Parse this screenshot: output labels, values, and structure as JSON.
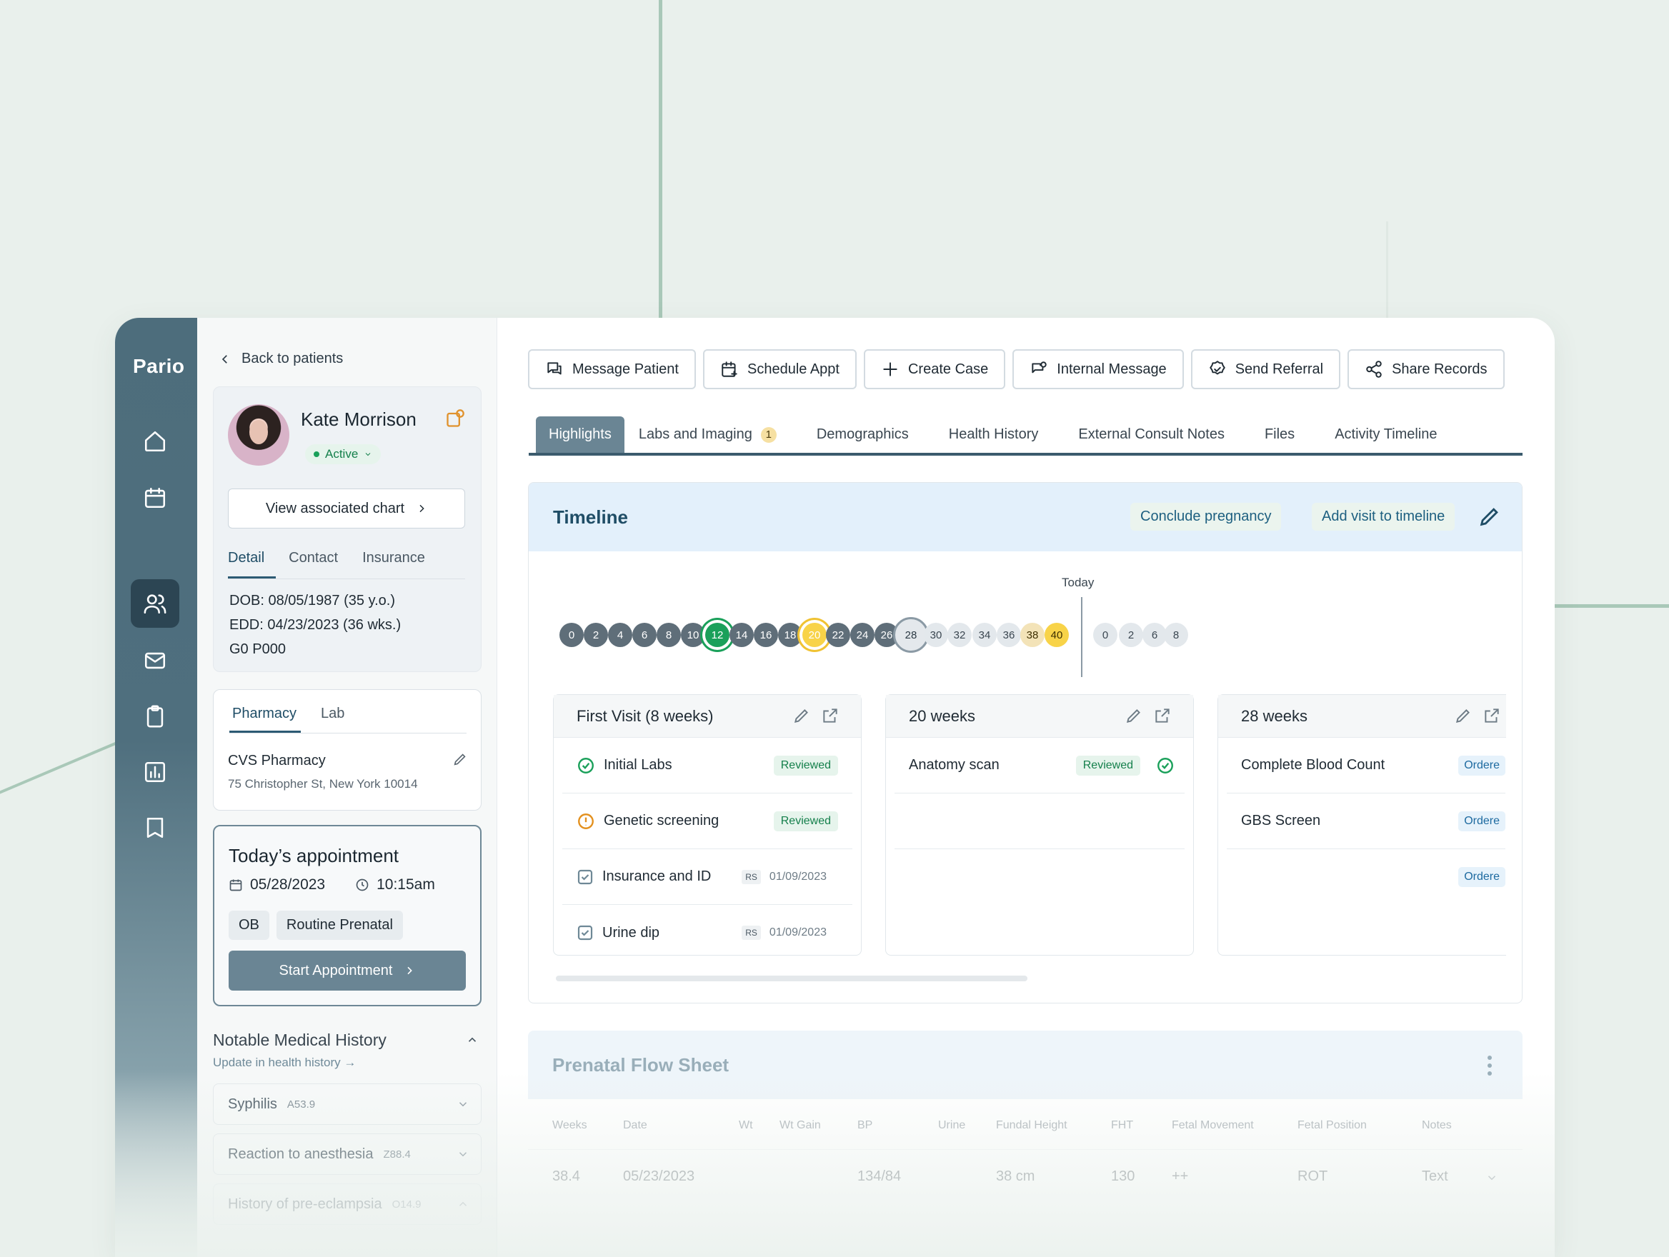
{
  "app": {
    "brand": "Pario"
  },
  "nav": {
    "items": [
      "home-icon",
      "calendar-icon",
      "patients-icon",
      "mail-icon",
      "clipboard-icon",
      "chart-icon",
      "book-icon"
    ],
    "active_index": 2
  },
  "patient_panel": {
    "back_label": "Back to patients",
    "name": "Kate Morrison",
    "status": "Active",
    "view_chart_label": "View associated chart",
    "tabs": [
      "Detail",
      "Contact",
      "Insurance"
    ],
    "details": [
      "DOB: 08/05/1987 (35 y.o.)",
      "EDD: 04/23/2023 (36 wks.)",
      "G0 P000"
    ],
    "pharmacy_tabs": [
      "Pharmacy",
      "Lab"
    ],
    "pharmacy_name": "CVS Pharmacy",
    "pharmacy_address": "75 Christopher St, New York 10014",
    "appointment": {
      "title": "Today’s appointment",
      "date": "05/28/2023",
      "time": "10:15am",
      "chips": [
        "OB",
        "Routine Prenatal"
      ],
      "start_label": "Start Appointment"
    },
    "notable": {
      "title": "Notable Medical History",
      "subtitle": "Update in health history →",
      "items": [
        {
          "label": "Syphilis",
          "code": "A53.9"
        },
        {
          "label": "Reaction to anesthesia",
          "code": "Z88.4"
        },
        {
          "label": "History of pre-eclampsia",
          "code": "O14.9"
        }
      ]
    }
  },
  "actions": [
    "Message Patient",
    "Schedule Appt",
    "Create Case",
    "Internal Message",
    "Send Referral",
    "Share Records"
  ],
  "tabs": [
    {
      "label": "Highlights",
      "active": true
    },
    {
      "label": "Labs and Imaging",
      "badge": "1"
    },
    {
      "label": "Demographics"
    },
    {
      "label": "Health History"
    },
    {
      "label": "External Consult Notes"
    },
    {
      "label": "Files"
    },
    {
      "label": "Activity Timeline"
    }
  ],
  "timeline": {
    "title": "Timeline",
    "conclude_label": "Conclude pregnancy",
    "add_visit_label": "Add visit to timeline",
    "today_label": "Today",
    "weeks": [
      {
        "n": "0",
        "s": "dark"
      },
      {
        "n": "2",
        "s": "dark"
      },
      {
        "n": "4",
        "s": "dark"
      },
      {
        "n": "6",
        "s": "dark"
      },
      {
        "n": "8",
        "s": "dark"
      },
      {
        "n": "10",
        "s": "dark"
      },
      {
        "n": "12",
        "s": "green-ring"
      },
      {
        "n": "14",
        "s": "dark"
      },
      {
        "n": "16",
        "s": "dark"
      },
      {
        "n": "18",
        "s": "dark"
      },
      {
        "n": "20",
        "s": "yellow-ring"
      },
      {
        "n": "22",
        "s": "dark"
      },
      {
        "n": "24",
        "s": "dark"
      },
      {
        "n": "26",
        "s": "dark"
      },
      {
        "n": "28",
        "s": "today"
      },
      {
        "n": "30",
        "s": "light"
      },
      {
        "n": "32",
        "s": "light"
      },
      {
        "n": "34",
        "s": "light"
      },
      {
        "n": "36",
        "s": "light"
      },
      {
        "n": "38",
        "s": "cream"
      },
      {
        "n": "40",
        "s": "yellow"
      },
      {
        "n": "0",
        "s": "light"
      },
      {
        "n": "2",
        "s": "light"
      },
      {
        "n": "6",
        "s": "light"
      },
      {
        "n": "8",
        "s": "light"
      }
    ],
    "cards": [
      {
        "title": "First Visit (8 weeks)",
        "rows": [
          {
            "label": "Initial Labs",
            "state": "check",
            "pill": "Reviewed"
          },
          {
            "label": "Genetic screening",
            "state": "warn",
            "pill": "Reviewed"
          },
          {
            "label": "Insurance and ID",
            "state": "box",
            "initials": "RS",
            "date": "01/09/2023"
          },
          {
            "label": "Urine dip",
            "state": "box",
            "initials": "RS",
            "date": "01/09/2023"
          }
        ]
      },
      {
        "title": "20 weeks",
        "rows": [
          {
            "label": "Anatomy scan",
            "state": "none",
            "pill": "Reviewed",
            "trail_check": true
          }
        ]
      },
      {
        "title": "28 weeks",
        "rows": [
          {
            "label": "Complete Blood Count",
            "state": "none",
            "order": "Ordere"
          },
          {
            "label": "GBS Screen",
            "state": "none",
            "order": "Ordere"
          },
          {
            "label": "",
            "state": "none",
            "order": "Ordere"
          }
        ]
      }
    ]
  },
  "flow_sheet": {
    "title": "Prenatal Flow Sheet",
    "columns": [
      "Weeks",
      "Date",
      "Wt",
      "Wt Gain",
      "BP",
      "Urine",
      "Fundal Height",
      "FHT",
      "Fetal Movement",
      "Fetal Position",
      "Notes"
    ],
    "row": {
      "weeks": "38.4",
      "date": "05/23/2023",
      "bp": "134/84",
      "fundal": "38 cm",
      "fht": "130",
      "movement": "++",
      "position": "ROT",
      "notes": "Text"
    }
  }
}
